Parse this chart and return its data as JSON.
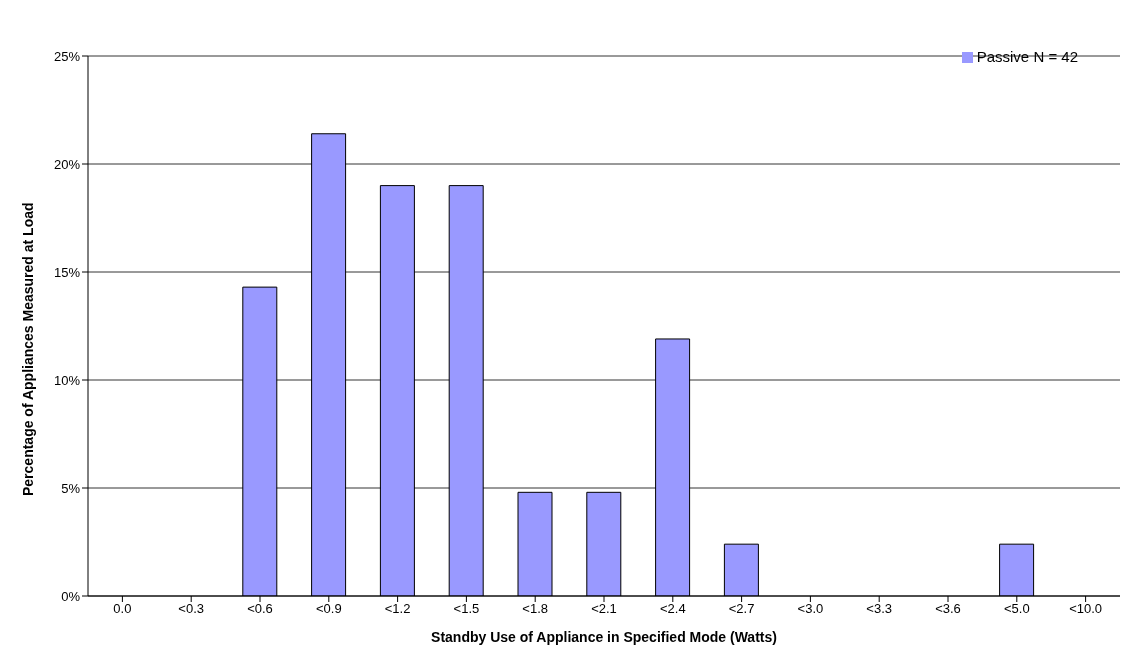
{
  "chart_data": {
    "type": "bar",
    "xlabel": "Standby Use of Appliance in Specified Mode (Watts)",
    "ylabel": "Percentage of Appliances Measured at Load",
    "categories": [
      "0.0",
      "<0.3",
      "<0.6",
      "<0.9",
      "<1.2",
      "<1.5",
      "<1.8",
      "<2.1",
      "<2.4",
      "<2.7",
      "<3.0",
      "<3.3",
      "<3.6",
      "<5.0",
      "<10.0"
    ],
    "series": [
      {
        "name": "Passive N = 42",
        "color": "#9999ff",
        "values": [
          0,
          0,
          14.3,
          21.4,
          19.0,
          19.0,
          4.8,
          4.8,
          11.9,
          2.4,
          0,
          0,
          0,
          2.4,
          0
        ]
      }
    ],
    "ylim": [
      0,
      25
    ],
    "yticks": [
      {
        "value": 0,
        "label": "0%"
      },
      {
        "value": 5,
        "label": "5%"
      },
      {
        "value": 10,
        "label": "10%"
      },
      {
        "value": 15,
        "label": "15%"
      },
      {
        "value": 20,
        "label": "20%"
      },
      {
        "value": 25,
        "label": "25%"
      }
    ],
    "grid": "y",
    "legend": "top right"
  }
}
